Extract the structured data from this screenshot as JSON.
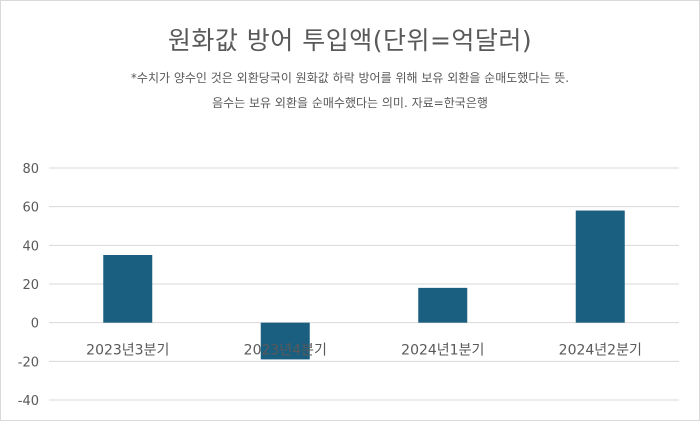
{
  "chart_data": {
    "type": "bar",
    "title": "원화값 방어 투입액(단위=억달러)",
    "notes": [
      "*수치가 양수인 것은 외환당국이 원화값 하락 방어를 위해 보유 외환을 순매도했다는 뜻.",
      "음수는 보유 외환을 순매수했다는 의미. 자료=한국은행"
    ],
    "categories": [
      "2023년3분기",
      "2023년4분기",
      "2024년1분기",
      "2024년2분기"
    ],
    "series": [
      {
        "values": [
          35,
          -19,
          18,
          58
        ]
      }
    ],
    "ylim": [
      -40,
      80
    ],
    "yticks": [
      80,
      60,
      40,
      20,
      0,
      -20,
      -40
    ],
    "xlabel": "",
    "ylabel": "",
    "grid": true,
    "colors": {
      "bar": "#1a5e80",
      "grid": "#d9d9d9",
      "text": "#595959"
    }
  }
}
